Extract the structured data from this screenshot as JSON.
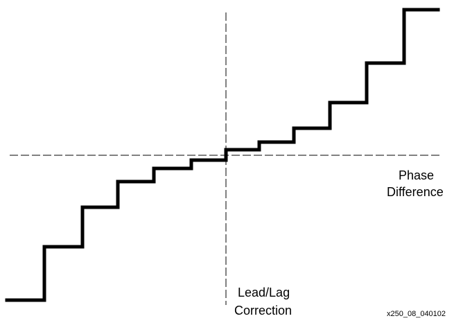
{
  "labels": {
    "x_axis_line1": "Phase",
    "x_axis_line2": "Difference",
    "y_axis_line1": "Lead/Lag",
    "y_axis_line2": "Correction",
    "figure_id": "x250_08_040102"
  },
  "curve": {
    "description_free": true,
    "steps": 12
  }
}
